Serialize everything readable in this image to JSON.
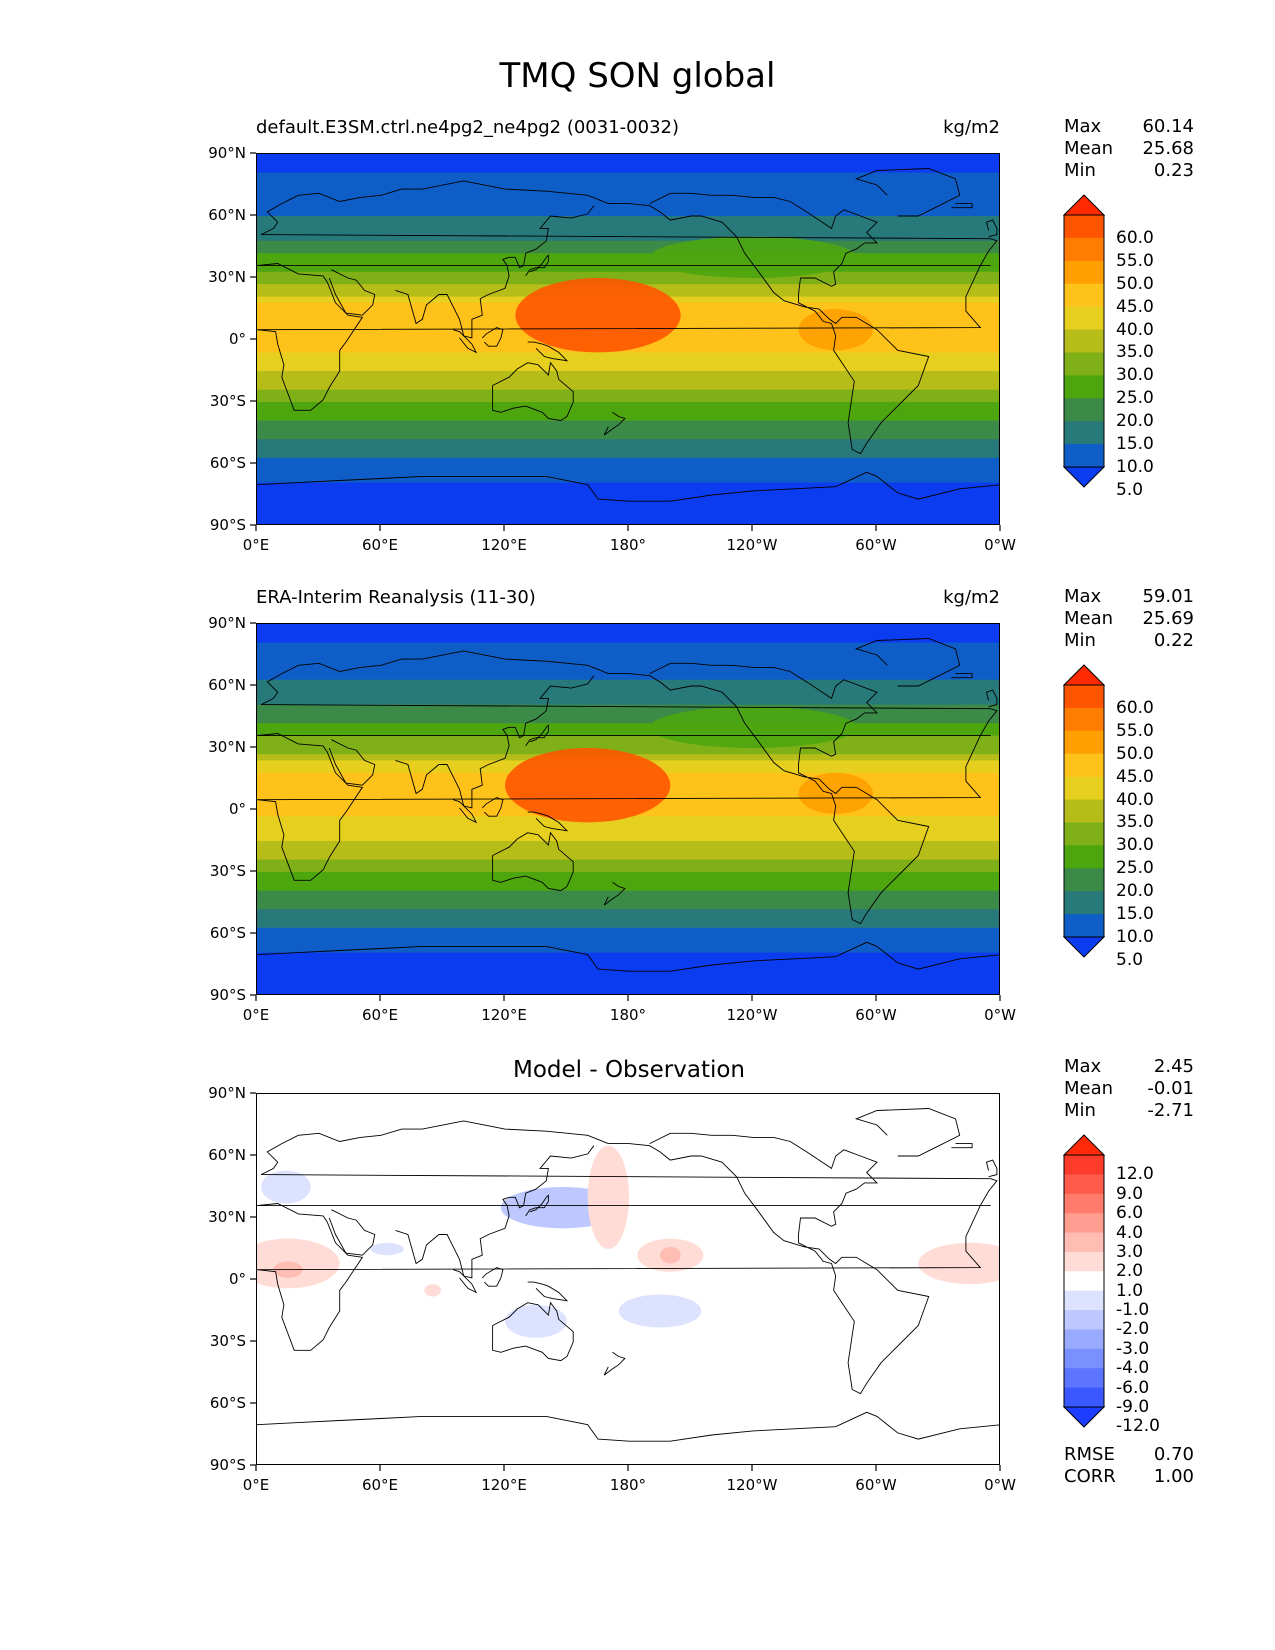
{
  "figure": {
    "title": "TMQ SON global"
  },
  "axes": {
    "lat_ticks": [
      "90°N",
      "60°N",
      "30°N",
      "0°",
      "30°S",
      "60°S",
      "90°S"
    ],
    "lon_ticks": [
      "0°E",
      "60°E",
      "120°E",
      "180°",
      "120°W",
      "60°W",
      "0°W"
    ]
  },
  "panels": [
    {
      "id": "model",
      "title_left": "default.E3SM.ctrl.ne4pg2_ne4pg2 (0031-0032)",
      "title_right": "kg/m2",
      "title_center": "",
      "stats": [
        {
          "label": "Max",
          "value": "60.14"
        },
        {
          "label": "Mean",
          "value": "25.68"
        },
        {
          "label": "Min",
          "value": "0.23"
        }
      ],
      "colorbar": {
        "labels": [
          "60.0",
          "55.0",
          "50.0",
          "45.0",
          "40.0",
          "35.0",
          "30.0",
          "25.0",
          "20.0",
          "15.0",
          "10.0",
          "5.0"
        ],
        "colors": [
          "#ff2a00",
          "#ff5500",
          "#ff7d00",
          "#ffa000",
          "#ffc21a",
          "#e6cf1e",
          "#b6bd19",
          "#7fb017",
          "#4ea60f",
          "#3b8a48",
          "#287a7a",
          "#0f5ec8",
          "#0b3cf0"
        ]
      }
    },
    {
      "id": "observation",
      "title_left": "ERA-Interim Reanalysis (11-30)",
      "title_right": "kg/m2",
      "title_center": "",
      "stats": [
        {
          "label": "Max",
          "value": "59.01"
        },
        {
          "label": "Mean",
          "value": "25.69"
        },
        {
          "label": "Min",
          "value": "0.22"
        }
      ],
      "colorbar": {
        "labels": [
          "60.0",
          "55.0",
          "50.0",
          "45.0",
          "40.0",
          "35.0",
          "30.0",
          "25.0",
          "20.0",
          "15.0",
          "10.0",
          "5.0"
        ],
        "colors": [
          "#ff2a00",
          "#ff5500",
          "#ff7d00",
          "#ffa000",
          "#ffc21a",
          "#e6cf1e",
          "#b6bd19",
          "#7fb017",
          "#4ea60f",
          "#3b8a48",
          "#287a7a",
          "#0f5ec8",
          "#0b3cf0"
        ]
      }
    },
    {
      "id": "difference",
      "title_left": "",
      "title_right": "",
      "title_center": "Model - Observation",
      "stats": [
        {
          "label": "Max",
          "value": "2.45"
        },
        {
          "label": "Mean",
          "value": "-0.01"
        },
        {
          "label": "Min",
          "value": "-2.71"
        }
      ],
      "colorbar": {
        "labels": [
          "12.0",
          "9.0",
          "6.0",
          "4.0",
          "3.0",
          "2.0",
          "1.0",
          "-1.0",
          "-2.0",
          "-3.0",
          "-4.0",
          "-6.0",
          "-9.0",
          "-12.0"
        ],
        "colors": [
          "#ff2a0a",
          "#ff3b2b",
          "#ff5a4a",
          "#ff7b6b",
          "#ff9e90",
          "#ffbdb3",
          "#ffdcd6",
          "#ffffff",
          "#dde3ff",
          "#bcc8ff",
          "#9aabff",
          "#7b90ff",
          "#5c74ff",
          "#3a58ff",
          "#1c3dff"
        ]
      },
      "footer": [
        {
          "label": "RMSE",
          "value": "0.70"
        },
        {
          "label": "CORR",
          "value": "1.00"
        }
      ]
    }
  ],
  "chart_data": [
    {
      "type": "heatmap",
      "title": "default.E3SM.ctrl.ne4pg2_ne4pg2 (0031-0032)",
      "units": "kg/m2",
      "x_range": [
        0,
        360
      ],
      "y_range": [
        -90,
        90
      ],
      "max": 60.14,
      "mean": 25.68,
      "min": 0.23,
      "levels": [
        5,
        10,
        15,
        20,
        25,
        30,
        35,
        40,
        45,
        50,
        55,
        60
      ],
      "zonal_band_values": [
        {
          "lat": 90,
          "value": 2
        },
        {
          "lat": 75,
          "value": 7
        },
        {
          "lat": 60,
          "value": 10
        },
        {
          "lat": 45,
          "value": 17
        },
        {
          "lat": 30,
          "value": 27
        },
        {
          "lat": 15,
          "value": 42
        },
        {
          "lat": 0,
          "value": 42
        },
        {
          "lat": -15,
          "value": 36
        },
        {
          "lat": -30,
          "value": 24
        },
        {
          "lat": -45,
          "value": 16
        },
        {
          "lat": -60,
          "value": 8
        },
        {
          "lat": -75,
          "value": 3
        },
        {
          "lat": -90,
          "value": 1
        }
      ],
      "anomalies": [
        {
          "lon": 165,
          "lat": 12,
          "value": 55,
          "rx": 40,
          "ry": 18
        },
        {
          "lon": 280,
          "lat": 5,
          "value": 47,
          "rx": 18,
          "ry": 10
        },
        {
          "lon": 240,
          "lat": 40,
          "value": 22,
          "rx": 50,
          "ry": 10
        }
      ]
    },
    {
      "type": "heatmap",
      "title": "ERA-Interim Reanalysis (11-30)",
      "units": "kg/m2",
      "x_range": [
        0,
        360
      ],
      "y_range": [
        -90,
        90
      ],
      "max": 59.01,
      "mean": 25.69,
      "min": 0.22,
      "levels": [
        5,
        10,
        15,
        20,
        25,
        30,
        35,
        40,
        45,
        50,
        55,
        60
      ],
      "zonal_band_values": [
        {
          "lat": 90,
          "value": 2
        },
        {
          "lat": 75,
          "value": 7
        },
        {
          "lat": 60,
          "value": 11
        },
        {
          "lat": 45,
          "value": 18
        },
        {
          "lat": 30,
          "value": 28
        },
        {
          "lat": 15,
          "value": 42
        },
        {
          "lat": 0,
          "value": 41
        },
        {
          "lat": -15,
          "value": 36
        },
        {
          "lat": -30,
          "value": 24
        },
        {
          "lat": -45,
          "value": 16
        },
        {
          "lat": -60,
          "value": 8
        },
        {
          "lat": -75,
          "value": 3
        },
        {
          "lat": -90,
          "value": 1
        }
      ],
      "anomalies": [
        {
          "lon": 160,
          "lat": 12,
          "value": 55,
          "rx": 40,
          "ry": 18
        },
        {
          "lon": 280,
          "lat": 8,
          "value": 47,
          "rx": 18,
          "ry": 10
        },
        {
          "lon": 240,
          "lat": 40,
          "value": 22,
          "rx": 50,
          "ry": 10
        }
      ]
    },
    {
      "type": "heatmap",
      "title": "Model - Observation",
      "units": "kg/m2",
      "x_range": [
        0,
        360
      ],
      "y_range": [
        -90,
        90
      ],
      "max": 2.45,
      "mean": -0.01,
      "min": -2.71,
      "rmse": 0.7,
      "corr": 1.0,
      "levels": [
        -12,
        -9,
        -6,
        -4,
        -3,
        -2,
        -1,
        1,
        2,
        3,
        4,
        6,
        9,
        12
      ],
      "features": [
        {
          "lon": 14,
          "lat": 45,
          "value": -1.5,
          "rx": 12,
          "ry": 8
        },
        {
          "lon": 15,
          "lat": 8,
          "value": 1.5,
          "rx": 25,
          "ry": 12
        },
        {
          "lon": 15,
          "lat": 5,
          "value": 2.5,
          "rx": 7,
          "ry": 4
        },
        {
          "lon": 148,
          "lat": 35,
          "value": -2.5,
          "rx": 30,
          "ry": 10
        },
        {
          "lon": 170,
          "lat": 40,
          "value": 1.5,
          "rx": 10,
          "ry": 25
        },
        {
          "lon": 200,
          "lat": 12,
          "value": 1.5,
          "rx": 16,
          "ry": 8
        },
        {
          "lon": 200,
          "lat": 12,
          "value": 2.5,
          "rx": 5,
          "ry": 4
        },
        {
          "lon": 195,
          "lat": -15,
          "value": -1.5,
          "rx": 20,
          "ry": 8
        },
        {
          "lon": 135,
          "lat": -20,
          "value": -1.5,
          "rx": 15,
          "ry": 8
        },
        {
          "lon": 63,
          "lat": 15,
          "value": -1.5,
          "rx": 8,
          "ry": 3
        },
        {
          "lon": 345,
          "lat": 8,
          "value": 1.5,
          "rx": 25,
          "ry": 10
        },
        {
          "lon": 85,
          "lat": -5,
          "value": 1.5,
          "rx": 4,
          "ry": 3
        }
      ]
    }
  ]
}
